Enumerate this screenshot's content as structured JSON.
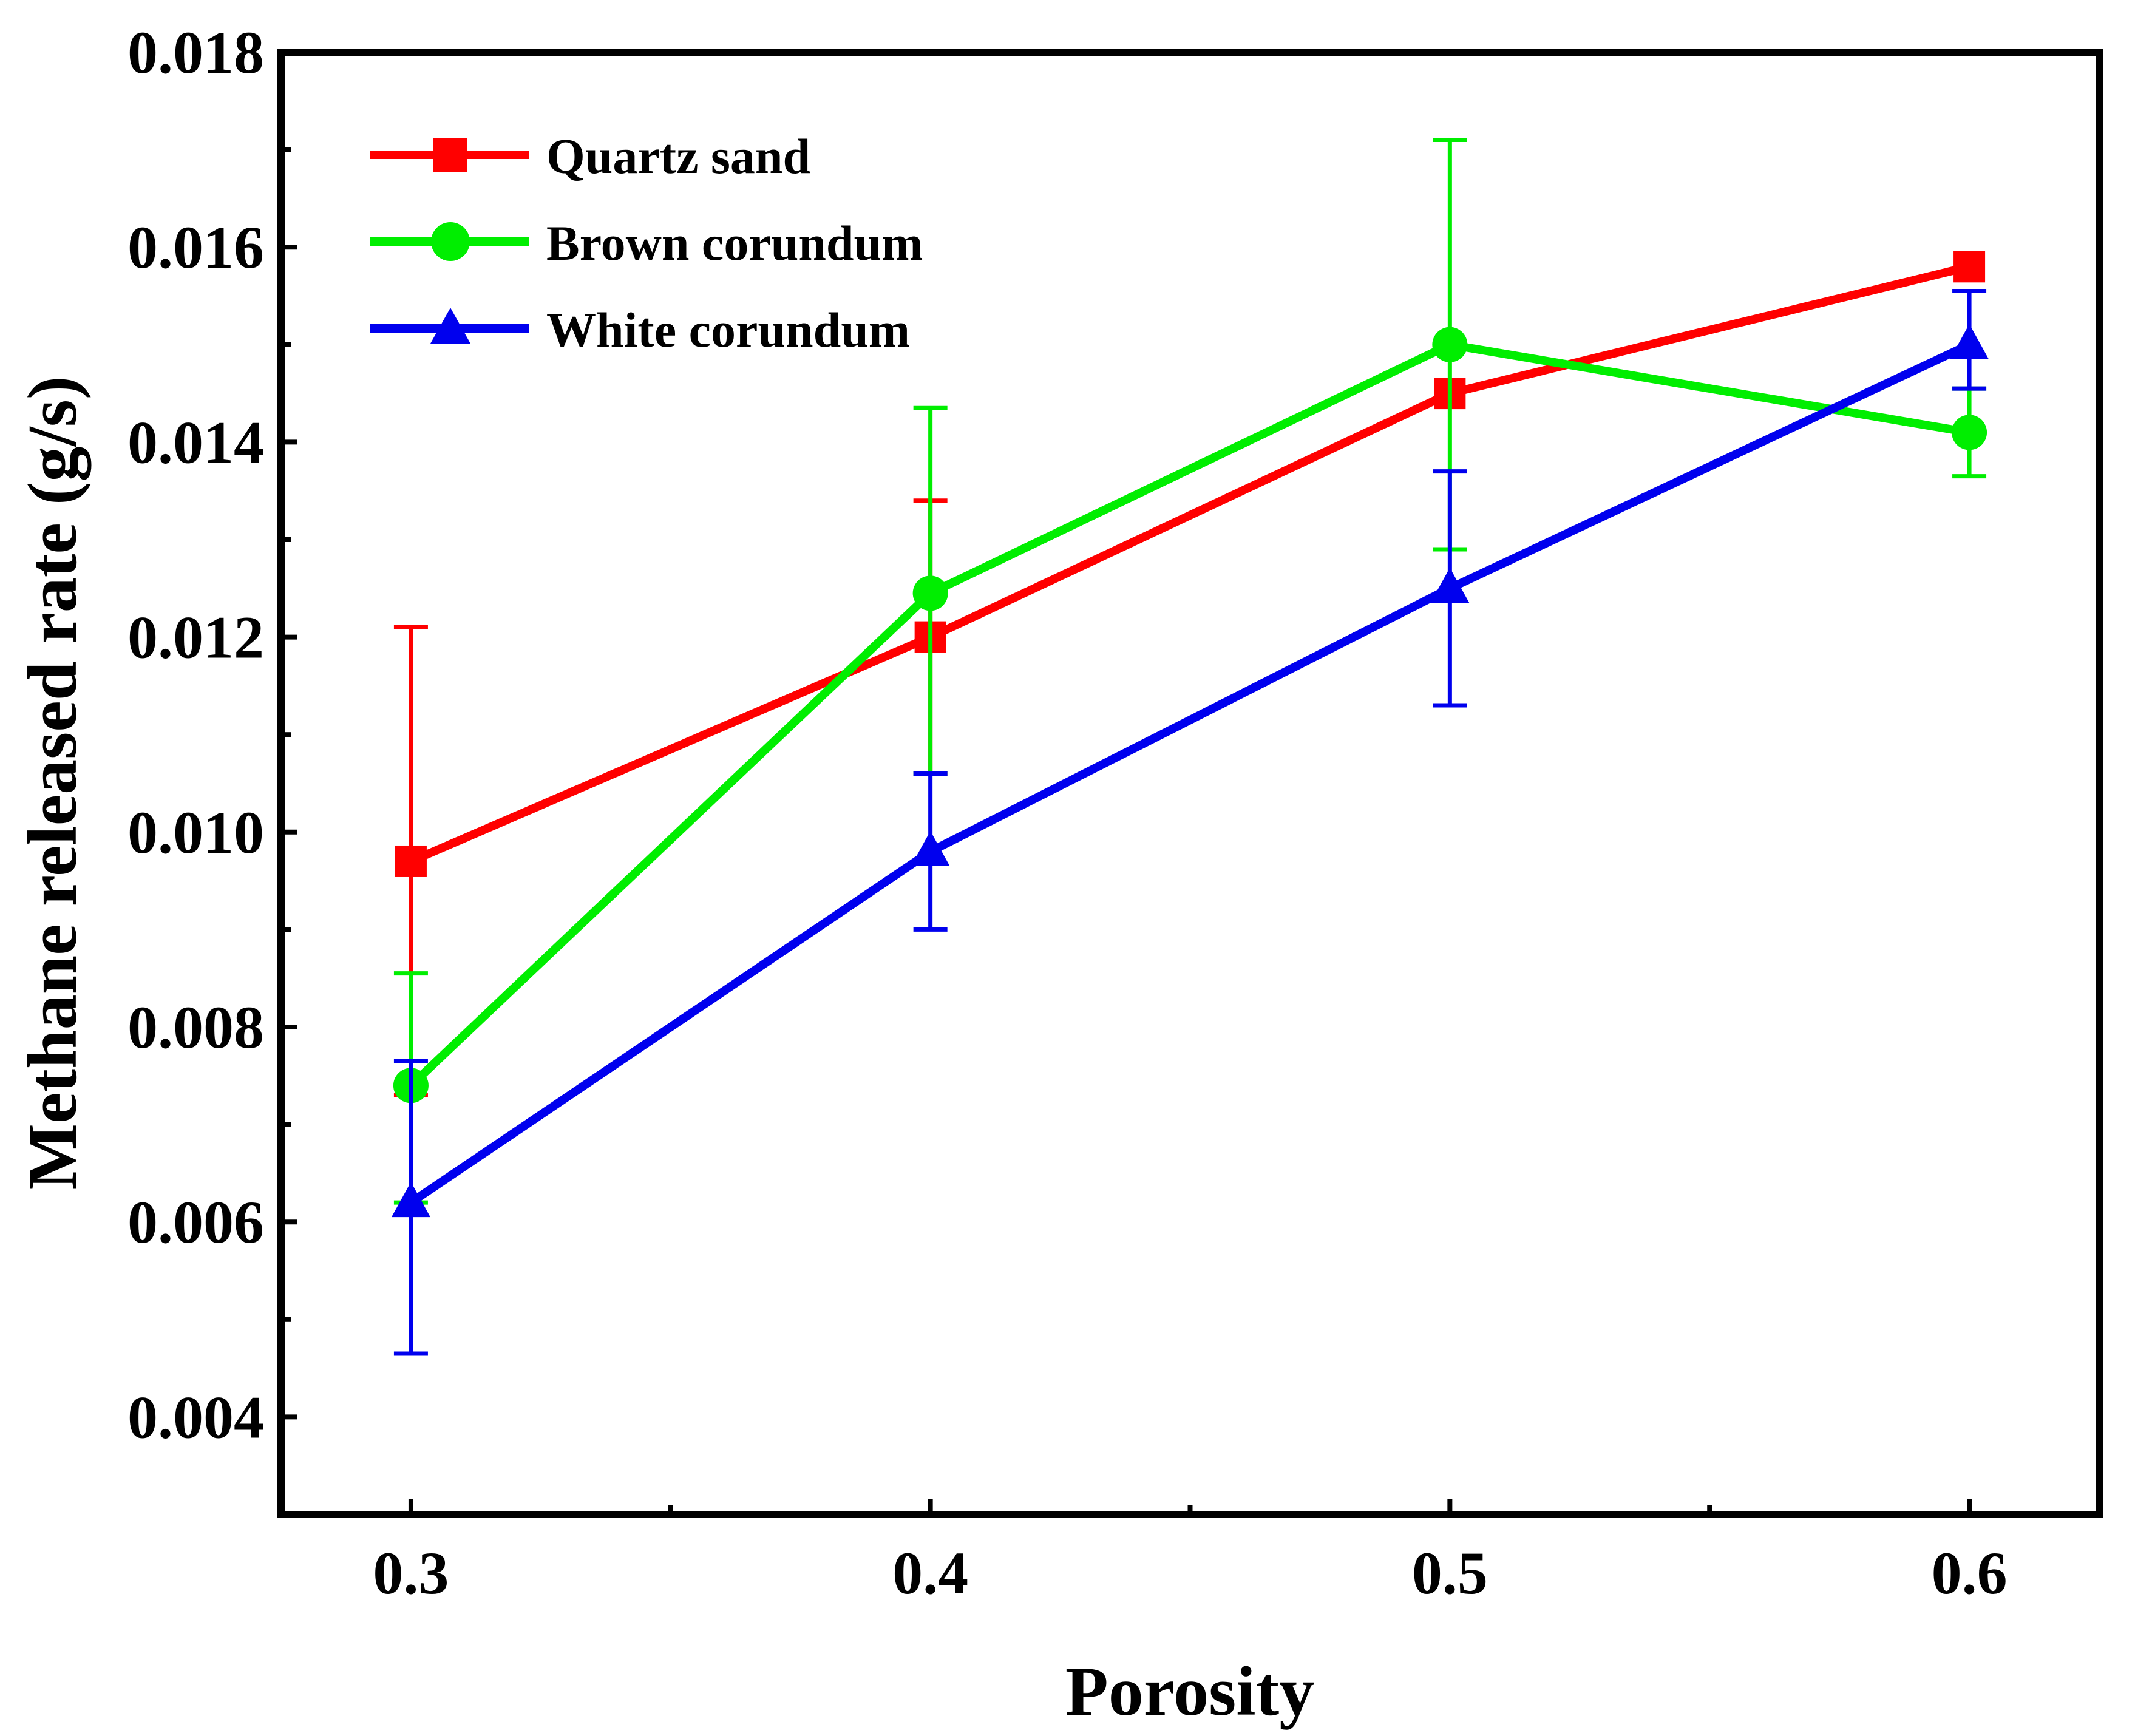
{
  "chart_data": {
    "type": "line",
    "title": "",
    "xlabel": "Porosity",
    "ylabel": "Methane released rate (g/s)",
    "xlim": [
      0.275,
      0.625
    ],
    "ylim": [
      0.003,
      0.018
    ],
    "xticks": [
      0.3,
      0.4,
      0.5,
      0.6
    ],
    "xtick_labels": [
      "0.3",
      "0.4",
      "0.5",
      "0.6"
    ],
    "yticks": [
      0.004,
      0.006,
      0.008,
      0.01,
      0.012,
      0.014,
      0.016,
      0.018
    ],
    "ytick_labels": [
      "0.004",
      "0.006",
      "0.008",
      "0.010",
      "0.012",
      "0.014",
      "0.016",
      "0.018"
    ],
    "grid": false,
    "legend_position": "top-left",
    "x": [
      0.3,
      0.4,
      0.5,
      0.6
    ],
    "series": [
      {
        "name": "Quartz sand",
        "color": "#ff0000",
        "marker": "square",
        "values": [
          0.0097,
          0.012,
          0.0145,
          0.0158
        ],
        "error_low": [
          0.0073,
          0.0106,
          0.0145,
          0.0158
        ],
        "error_high": [
          0.0121,
          0.0134,
          0.0145,
          0.0158
        ]
      },
      {
        "name": "Brown corundum",
        "color": "#00ee00",
        "marker": "circle",
        "values": [
          0.0074,
          0.01245,
          0.015,
          0.0141
        ],
        "error_low": [
          0.0062,
          0.0106,
          0.0129,
          0.01365
        ],
        "error_high": [
          0.00855,
          0.01435,
          0.0171,
          0.01455
        ]
      },
      {
        "name": "White corundum",
        "color": "#0000ee",
        "marker": "triangle",
        "values": [
          0.0062,
          0.0098,
          0.0125,
          0.015
        ],
        "error_low": [
          0.00465,
          0.009,
          0.0113,
          0.01455
        ],
        "error_high": [
          0.00765,
          0.0106,
          0.0137,
          0.01555
        ]
      }
    ]
  }
}
